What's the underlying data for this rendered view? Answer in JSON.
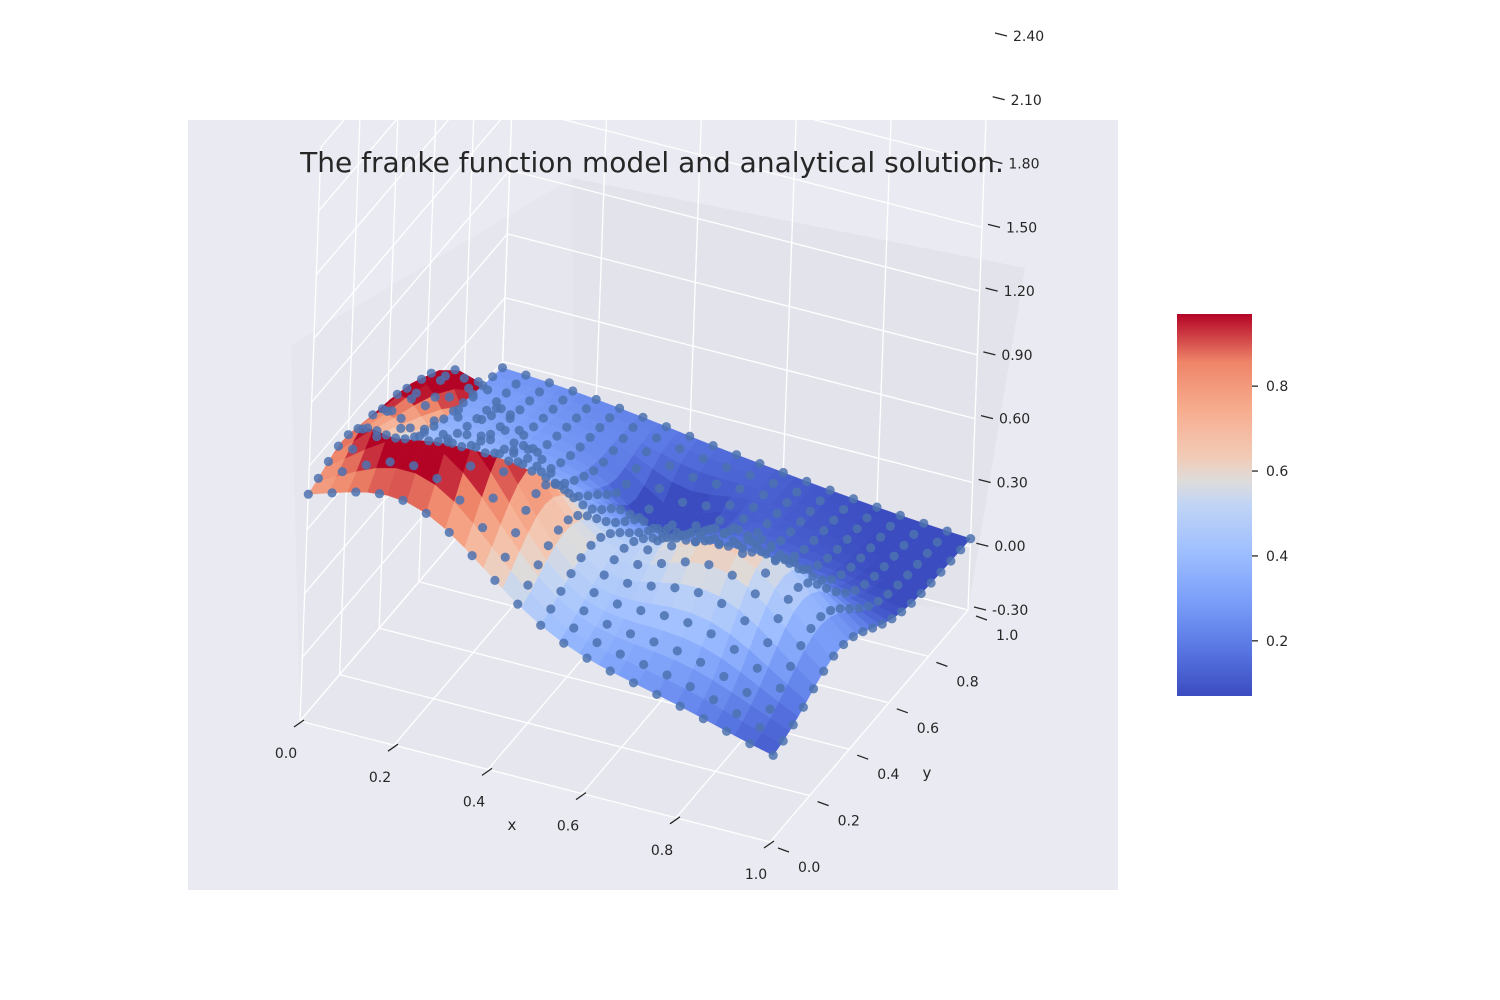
{
  "chart_data": {
    "type": "scatter",
    "subtype": "3d surface with scatter overlay",
    "title": "The franke function model and analytical solution.",
    "xlabel": "x",
    "ylabel": "y",
    "zlabel": "",
    "x_ticks": [
      0.0,
      0.2,
      0.4,
      0.6,
      0.8,
      1.0
    ],
    "x_tick_labels": [
      "0.0",
      "0.2",
      "0.4",
      "0.6",
      "0.8",
      "1.0"
    ],
    "y_ticks": [
      0.0,
      0.2,
      0.4,
      0.6,
      0.8,
      1.0
    ],
    "y_tick_labels": [
      "0.0",
      "0.2",
      "0.4",
      "0.6",
      "0.8",
      "1.0"
    ],
    "z_ticks": [
      -0.3,
      0.0,
      0.3,
      0.6,
      0.9,
      1.2,
      1.5,
      1.8,
      2.1,
      2.4
    ],
    "z_tick_labels": [
      "-0.30",
      "0.00",
      "0.30",
      "0.60",
      "0.90",
      "1.20",
      "1.50",
      "1.80",
      "2.10",
      "2.40"
    ],
    "xlim": [
      0,
      1
    ],
    "ylim": [
      0,
      1
    ],
    "zlim": [
      -0.3,
      2.4
    ],
    "surface": {
      "function": "Franke function (analytical solution)",
      "colormap": "coolwarm",
      "value_range": [
        0.07,
        0.97
      ]
    },
    "scatter": {
      "description": "model predictions on a regular grid",
      "color": "#4c72b0",
      "grid": [
        0.0,
        0.05,
        0.1,
        0.15,
        0.2,
        0.25,
        0.3,
        0.35,
        0.4,
        0.45,
        0.5,
        0.55,
        0.6,
        0.65,
        0.7,
        0.75,
        0.8,
        0.85,
        0.9,
        0.95,
        1.0
      ]
    },
    "colorbar": {
      "colormap": "coolwarm",
      "range": [
        0.07,
        0.97
      ],
      "ticks": [
        0.2,
        0.4,
        0.6,
        0.8
      ],
      "tick_labels": [
        "0.2",
        "0.4",
        "0.6",
        "0.8"
      ]
    },
    "grid": true,
    "background": "#eaeaf2"
  }
}
